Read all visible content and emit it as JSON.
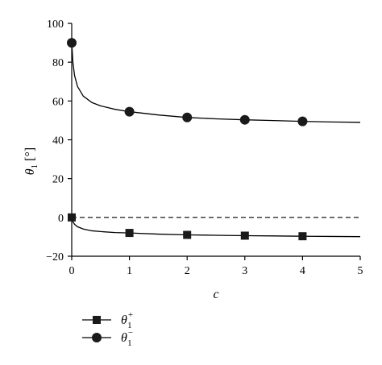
{
  "chart_data": {
    "type": "line",
    "xlabel": "c",
    "ylabel": "θ1 [°]",
    "ylabel_parts": {
      "symbol": "θ",
      "sub": "1",
      "unit": "[°]"
    },
    "xlim": [
      0,
      5
    ],
    "ylim": [
      -20,
      100
    ],
    "x_ticks": [
      0,
      1,
      2,
      3,
      4,
      5
    ],
    "y_ticks": [
      -20,
      0,
      20,
      40,
      60,
      80,
      100
    ],
    "x_tick_labels": [
      "0",
      "1",
      "2",
      "3",
      "4",
      "5"
    ],
    "y_tick_labels": [
      "−20",
      "0",
      "20",
      "40",
      "60",
      "80",
      "100"
    ],
    "grid": false,
    "legend_position": "bottom-left",
    "reference_line": {
      "y": 0,
      "style": "dashed"
    },
    "series": [
      {
        "name": "θ1+",
        "legend_parts": {
          "symbol": "θ",
          "sub": "1",
          "sup": "+"
        },
        "marker": "square",
        "markers": {
          "x": [
            0,
            1,
            2,
            3,
            4
          ],
          "y": [
            0,
            -8.0,
            -9.0,
            -9.4,
            -9.7
          ]
        },
        "curve": {
          "x": [
            0,
            0.02,
            0.05,
            0.1,
            0.2,
            0.35,
            0.5,
            0.75,
            1,
            1.5,
            2,
            2.5,
            3,
            3.5,
            4,
            4.5,
            5
          ],
          "y": [
            0,
            -2.2,
            -3.6,
            -4.8,
            -6.0,
            -6.9,
            -7.3,
            -7.8,
            -8.0,
            -8.6,
            -9.0,
            -9.2,
            -9.4,
            -9.55,
            -9.7,
            -9.8,
            -9.9
          ]
        }
      },
      {
        "name": "θ1−",
        "legend_parts": {
          "symbol": "θ",
          "sub": "1",
          "sup": "−"
        },
        "marker": "circle",
        "markers": {
          "x": [
            0,
            1,
            2,
            3,
            4
          ],
          "y": [
            90,
            54.5,
            51.5,
            50.3,
            49.5
          ]
        },
        "curve": {
          "x": [
            0,
            0.02,
            0.05,
            0.1,
            0.2,
            0.35,
            0.5,
            0.75,
            1,
            1.5,
            2,
            2.5,
            3,
            3.5,
            4,
            4.5,
            5
          ],
          "y": [
            90,
            80,
            73,
            67.5,
            62.5,
            59.2,
            57.5,
            55.7,
            54.5,
            52.8,
            51.5,
            50.8,
            50.3,
            49.9,
            49.5,
            49.2,
            49.0
          ]
        }
      }
    ]
  }
}
